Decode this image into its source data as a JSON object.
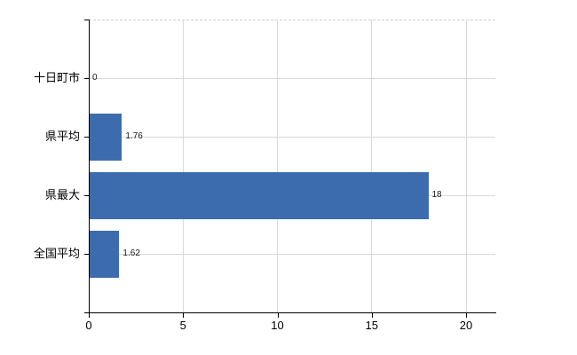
{
  "chart_data": {
    "type": "bar",
    "orientation": "horizontal",
    "title": "",
    "xlabel": "",
    "ylabel": "",
    "categories": [
      "十日町市",
      "県平均",
      "県最大",
      "全国平均"
    ],
    "values": [
      0,
      1.76,
      18,
      1.62
    ],
    "value_labels": [
      "0",
      "1.76",
      "18",
      "1.62"
    ],
    "x_ticks": [
      0,
      5,
      10,
      15,
      20
    ],
    "x_tick_labels": [
      "0",
      "5",
      "10",
      "15",
      "20"
    ],
    "xlim": [
      0,
      21.55
    ],
    "grid": true,
    "legend": false,
    "colors": {
      "bar": "#3c6cad",
      "gridline": "#d9d9d9",
      "top_border_dashed": "#cfcfcf",
      "axis": "#000000",
      "text": "#000000",
      "background": "#ffffff"
    }
  }
}
